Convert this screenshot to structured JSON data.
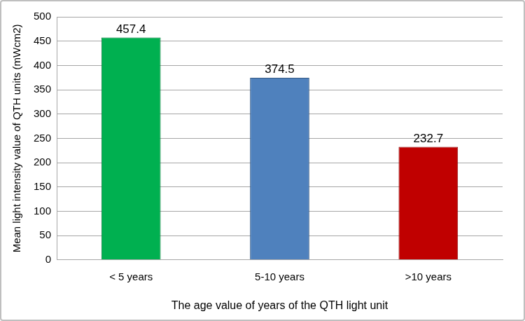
{
  "chart_data": {
    "type": "bar",
    "categories": [
      "< 5 years",
      "5-10 years",
      ">10 years"
    ],
    "values": [
      457.4,
      374.5,
      232.7
    ],
    "colors": [
      "#00b050",
      "#4f81bd",
      "#c00000"
    ],
    "x_label": "The age value of years of the QTH light unit",
    "y_label": "Mean light intensity value of QTH units (mWcm2)",
    "ylim": [
      0,
      500
    ],
    "yticks": [
      0,
      50,
      100,
      150,
      200,
      250,
      300,
      350,
      400,
      450,
      500
    ],
    "grid": true,
    "data_labels": true
  }
}
